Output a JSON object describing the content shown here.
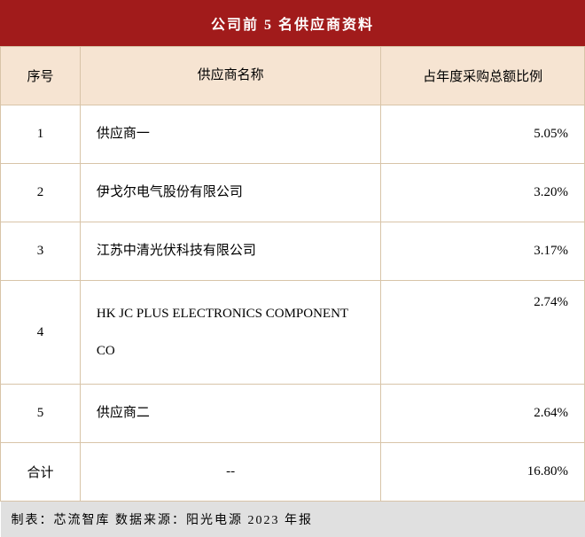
{
  "title": "公司前 5 名供应商资料",
  "columns": {
    "seq": "序号",
    "name": "供应商名称",
    "ratio": "占年度采购总额比例"
  },
  "rows": [
    {
      "seq": "1",
      "name": "供应商一",
      "ratio": "5.05%"
    },
    {
      "seq": "2",
      "name": "伊戈尔电气股份有限公司",
      "ratio": "3.20%"
    },
    {
      "seq": "3",
      "name": "江苏中清光伏科技有限公司",
      "ratio": "3.17%"
    },
    {
      "seq": "4",
      "name": "HK JC PLUS ELECTRONICS COMPONENT CO",
      "ratio": "2.74%"
    },
    {
      "seq": "5",
      "name": "供应商二",
      "ratio": "2.64%"
    }
  ],
  "total": {
    "seq": "合计",
    "name": "--",
    "ratio": "16.80%"
  },
  "footer": "制表：芯流智库 数据来源：阳光电源 2023 年报",
  "styling": {
    "title_bg": "#a11b1b",
    "title_color": "#ffffff",
    "header_bg": "#f6e4d2",
    "border_color": "#d8c4a8",
    "footer_bg": "#e0e0e0",
    "body_bg": "#ffffff",
    "text_color": "#000000",
    "title_fontsize": 16,
    "header_fontsize": 15,
    "cell_fontsize": 15,
    "col_widths": {
      "seq": 90,
      "name": 340,
      "ratio": 230
    }
  }
}
